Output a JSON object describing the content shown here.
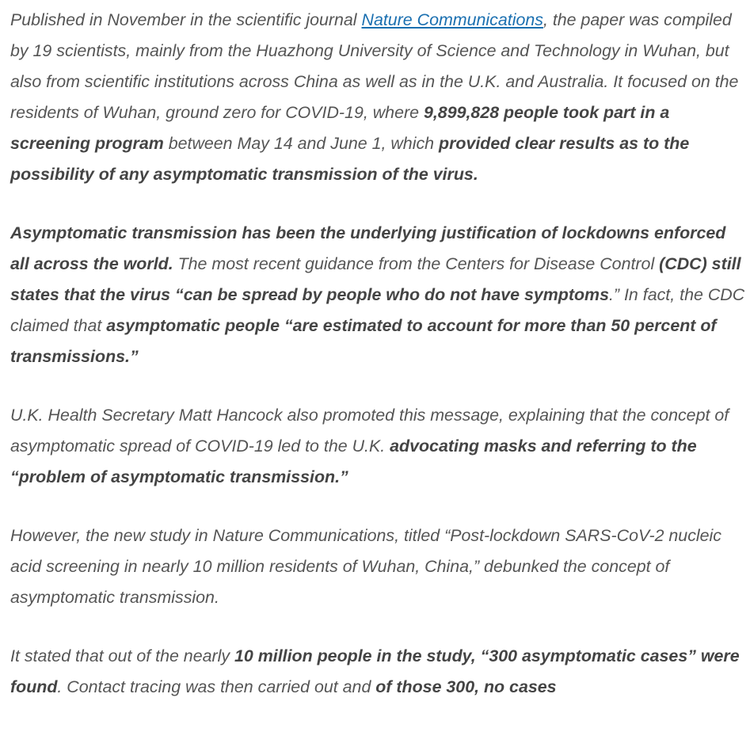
{
  "article": {
    "p1": {
      "s1": "Published in November in the scientific journal ",
      "link": "Nature Communications",
      "s2": ", the paper was compiled by 19 scientists, mainly from the Huazhong University of Science and Technology in Wuhan, but also from scientific institutions across China as well as in the U.K. and Australia. It focused on the residents of Wuhan, ground zero for COVID-19, where ",
      "b1": "9,899,828 people took part in a screening program",
      "s3": " between May 14 and June 1, which ",
      "b2": "provided clear results as to the possibility of any asymptomatic transmission of the virus."
    },
    "p2": {
      "b1": "Asymptomatic transmission has been the underlying justification of lockdowns enforced all across the world.",
      "s1": " The most recent guidance from the Centers for Disease Control ",
      "b2": "(CDC) still states that the virus “can be spread by people who do not have symptoms",
      "s2": ".” In fact, the CDC claimed that ",
      "b3": "asymptomatic people “are estimated to account for more than 50 percent of transmissions.”"
    },
    "p3": {
      "s1": "U.K. Health Secretary Matt Hancock also promoted this message, explaining that the concept of asymptomatic spread of COVID-19 led to the U.K. ",
      "b1": "advocating masks and referring to the “problem of asymptomatic transmission.”"
    },
    "p4": {
      "s1": "However, the new study in Nature Communications, titled “Post-lockdown SARS-CoV-2 nucleic acid screening in nearly 10 million residents of Wuhan, China,” debunked the concept of asymptomatic transmission."
    },
    "p5": {
      "s1": "It stated that out of the nearly ",
      "b1": "10 million people in the study, “300 asymptomatic cases” were found",
      "s2": ". Contact tracing was then carried out and ",
      "b2": "of those 300, no cases"
    }
  }
}
